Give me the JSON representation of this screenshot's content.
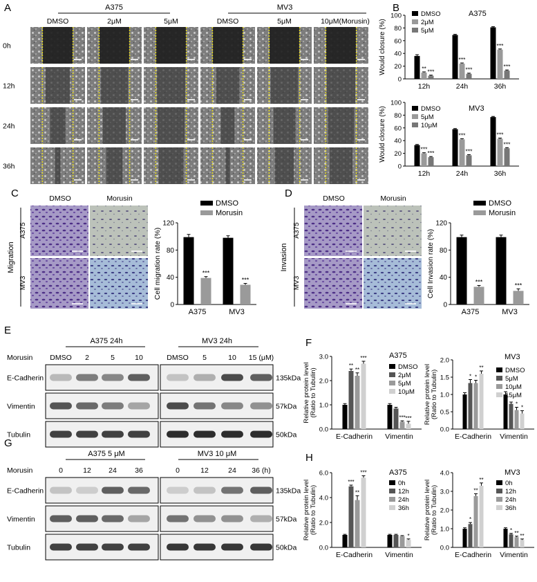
{
  "panels": {
    "A": {
      "letter": "A",
      "groups": [
        "A375",
        "MV3"
      ],
      "cols": [
        "DMSO",
        "2μM",
        "5μM",
        "DMSO",
        "5μM",
        "10μM(Morusin)"
      ],
      "rows": [
        "0h",
        "12h",
        "24h",
        "36h"
      ]
    },
    "C": {
      "letter": "C",
      "cols": [
        "DMSO",
        "Morusin"
      ],
      "rows": [
        "A375",
        "MV3"
      ],
      "side": "Migration"
    },
    "D": {
      "letter": "D",
      "cols": [
        "DMSO",
        "Morusin"
      ],
      "rows": [
        "A375",
        "MV3"
      ],
      "side": "Invasion"
    },
    "E": {
      "letter": "E",
      "groups": [
        "A375 24h",
        "MV3 24h"
      ],
      "treat": "Morusin",
      "lanes": [
        "DMSO",
        "2",
        "5",
        "10",
        "DMSO",
        "5",
        "10",
        "15 (μM)"
      ],
      "proteins": [
        "E-Cadherin",
        "Vimentin",
        "Tubulin"
      ],
      "sizes": [
        "135kDa",
        "57kDa",
        "50kDa"
      ]
    },
    "G": {
      "letter": "G",
      "groups": [
        "A375 5 μM",
        "MV3 10 μM"
      ],
      "treat": "Morusin",
      "lanes": [
        "0",
        "12",
        "24",
        "36",
        "0",
        "12",
        "24",
        "36 (h)"
      ],
      "proteins": [
        "E-Cadherin",
        "Vimentin",
        "Tubulin"
      ],
      "sizes": [
        "135kDa",
        "57kDa",
        "50kDa"
      ]
    }
  },
  "colors": {
    "black": "#000000",
    "dark": "#555555",
    "mid": "#9a9a9a",
    "light": "#d0d0d0",
    "guide": "#e8dc1a"
  },
  "chart_data": [
    {
      "id": "B1",
      "letter": "B",
      "type": "bar",
      "title": "A375",
      "ylabel": "Would closure (%)",
      "ylim": [
        0,
        100
      ],
      "yticks": [
        0,
        20,
        40,
        60,
        80,
        100
      ],
      "categories": [
        "12h",
        "24h",
        "36h"
      ],
      "series": [
        {
          "name": "DMSO",
          "values": [
            36,
            69,
            81
          ],
          "err": [
            2,
            1,
            1
          ],
          "sig": [
            "",
            "",
            ""
          ]
        },
        {
          "name": "2μM",
          "values": [
            10,
            24,
            46
          ],
          "err": [
            1,
            1,
            1
          ],
          "sig": [
            "**",
            "***",
            "***"
          ]
        },
        {
          "name": "5μM",
          "values": [
            5,
            8,
            13
          ],
          "err": [
            1,
            1,
            1
          ],
          "sig": [
            "***",
            "***",
            "***"
          ]
        }
      ]
    },
    {
      "id": "B2",
      "type": "bar",
      "title": "MV3",
      "ylabel": "Would closure (%)",
      "ylim": [
        0,
        100
      ],
      "yticks": [
        0,
        20,
        40,
        60,
        80,
        100
      ],
      "categories": [
        "12h",
        "24h",
        "36h"
      ],
      "series": [
        {
          "name": "DMSO",
          "values": [
            33,
            58,
            77
          ],
          "err": [
            1,
            1,
            1
          ],
          "sig": [
            "",
            "",
            ""
          ]
        },
        {
          "name": "5μM",
          "values": [
            20,
            42,
            43
          ],
          "err": [
            1,
            1,
            1
          ],
          "sig": [
            "***",
            "***",
            "***"
          ]
        },
        {
          "name": "10μM",
          "values": [
            14,
            17,
            28
          ],
          "err": [
            1,
            1,
            1
          ],
          "sig": [
            "***",
            "***",
            "***"
          ]
        }
      ]
    },
    {
      "id": "C",
      "type": "bar",
      "title": "",
      "ylabel": "Cell migration rate (%)",
      "ylim": [
        0,
        120
      ],
      "yticks": [
        0,
        40,
        80,
        120
      ],
      "categories": [
        "A375",
        "MV3"
      ],
      "series": [
        {
          "name": "DMSO",
          "values": [
            99,
            98
          ],
          "err": [
            4,
            3
          ],
          "sig": [
            "",
            ""
          ]
        },
        {
          "name": "Morusin",
          "values": [
            39,
            29
          ],
          "err": [
            2,
            2
          ],
          "sig": [
            "***",
            "***"
          ]
        }
      ]
    },
    {
      "id": "D",
      "type": "bar",
      "title": "",
      "ylabel": "Cell Invasion rate (%)",
      "ylim": [
        0,
        120
      ],
      "yticks": [
        0,
        40,
        80,
        120
      ],
      "categories": [
        "A375",
        "MV3"
      ],
      "series": [
        {
          "name": "DMSO",
          "values": [
            99,
            99
          ],
          "err": [
            3,
            3
          ],
          "sig": [
            "",
            ""
          ]
        },
        {
          "name": "Morusin",
          "values": [
            26,
            20
          ],
          "err": [
            2,
            3
          ],
          "sig": [
            "***",
            "***"
          ]
        }
      ]
    },
    {
      "id": "F1",
      "letter": "F",
      "type": "bar",
      "title": "A375",
      "ylabel": "Relative protein level (Ratio to Tubulin)",
      "ylim": [
        0,
        3.0
      ],
      "yticks": [
        0,
        1.0,
        2.0,
        3.0
      ],
      "yfmt": 1,
      "categories": [
        "E-Cadherin",
        "Vimentin"
      ],
      "series": [
        {
          "name": "DMSO",
          "values": [
            1.0,
            1.0
          ],
          "err": [
            0.05,
            0.05
          ],
          "sig": [
            "",
            ""
          ]
        },
        {
          "name": "2μM",
          "values": [
            2.4,
            0.85
          ],
          "err": [
            0.08,
            0.05
          ],
          "sig": [
            "**",
            ""
          ]
        },
        {
          "name": "5μM",
          "values": [
            2.2,
            0.3
          ],
          "err": [
            0.12,
            0.04
          ],
          "sig": [
            "**",
            "***"
          ]
        },
        {
          "name": "10μM",
          "values": [
            2.7,
            0.22
          ],
          "err": [
            0.1,
            0.1
          ],
          "sig": [
            "***",
            "***"
          ]
        }
      ]
    },
    {
      "id": "F2",
      "type": "bar",
      "title": "MV3",
      "ylabel": "Relative protein level (Ratio to Tubulin)",
      "ylim": [
        0,
        2.0
      ],
      "yticks": [
        0,
        0.5,
        1.0,
        1.5,
        2.0
      ],
      "yfmt": 1,
      "categories": [
        "E-Cadherin",
        "Vimentin"
      ],
      "series": [
        {
          "name": "DMSO",
          "values": [
            1.0,
            1.0
          ],
          "err": [
            0.05,
            0.08
          ],
          "sig": [
            "",
            ""
          ]
        },
        {
          "name": "5μM",
          "values": [
            1.33,
            0.73
          ],
          "err": [
            0.1,
            0.05
          ],
          "sig": [
            "*",
            ""
          ]
        },
        {
          "name": "10μM",
          "values": [
            1.33,
            0.55
          ],
          "err": [
            0.08,
            0.08
          ],
          "sig": [
            "*",
            "*"
          ]
        },
        {
          "name": "15μM",
          "values": [
            1.6,
            0.45
          ],
          "err": [
            0.08,
            0.08
          ],
          "sig": [
            "**",
            "*"
          ]
        }
      ]
    },
    {
      "id": "H1",
      "letter": "H",
      "type": "bar",
      "title": "A375",
      "ylabel": "Relative protein level (Ratio to Tubulin)",
      "ylim": [
        0,
        6.0
      ],
      "yticks": [
        0,
        2.0,
        4.0,
        6.0
      ],
      "yfmt": 1,
      "categories": [
        "E-Cadherin",
        "Vimentin"
      ],
      "series": [
        {
          "name": "0h",
          "values": [
            1.0,
            1.0
          ],
          "err": [
            0.05,
            0.05
          ],
          "sig": [
            "",
            ""
          ]
        },
        {
          "name": "12h",
          "values": [
            4.9,
            1.0
          ],
          "err": [
            0.1,
            0.05
          ],
          "sig": [
            "***",
            ""
          ]
        },
        {
          "name": "24h",
          "values": [
            3.8,
            0.9
          ],
          "err": [
            0.35,
            0.05
          ],
          "sig": [
            "**",
            ""
          ]
        },
        {
          "name": "36h",
          "values": [
            5.6,
            0.6
          ],
          "err": [
            0.15,
            0.08
          ],
          "sig": [
            "***",
            "*"
          ]
        }
      ]
    },
    {
      "id": "H2",
      "type": "bar",
      "title": "MV3",
      "ylabel": "Relative protein level (Ratio to Tubulin)",
      "ylim": [
        0,
        4.0
      ],
      "yticks": [
        0,
        1.0,
        2.0,
        3.0,
        4.0
      ],
      "yfmt": 1,
      "categories": [
        "E-Cadherin",
        "Vimentin"
      ],
      "series": [
        {
          "name": "0h",
          "values": [
            1.0,
            1.0
          ],
          "err": [
            0.05,
            0.05
          ],
          "sig": [
            "",
            ""
          ]
        },
        {
          "name": "12h",
          "values": [
            1.25,
            0.7
          ],
          "err": [
            0.08,
            0.05
          ],
          "sig": [
            "*",
            "*"
          ]
        },
        {
          "name": "24h",
          "values": [
            2.75,
            0.55
          ],
          "err": [
            0.12,
            0.05
          ],
          "sig": [
            "**",
            "**"
          ]
        },
        {
          "name": "36h",
          "values": [
            3.3,
            0.4
          ],
          "err": [
            0.15,
            0.05
          ],
          "sig": [
            "**",
            "**"
          ]
        }
      ]
    }
  ]
}
